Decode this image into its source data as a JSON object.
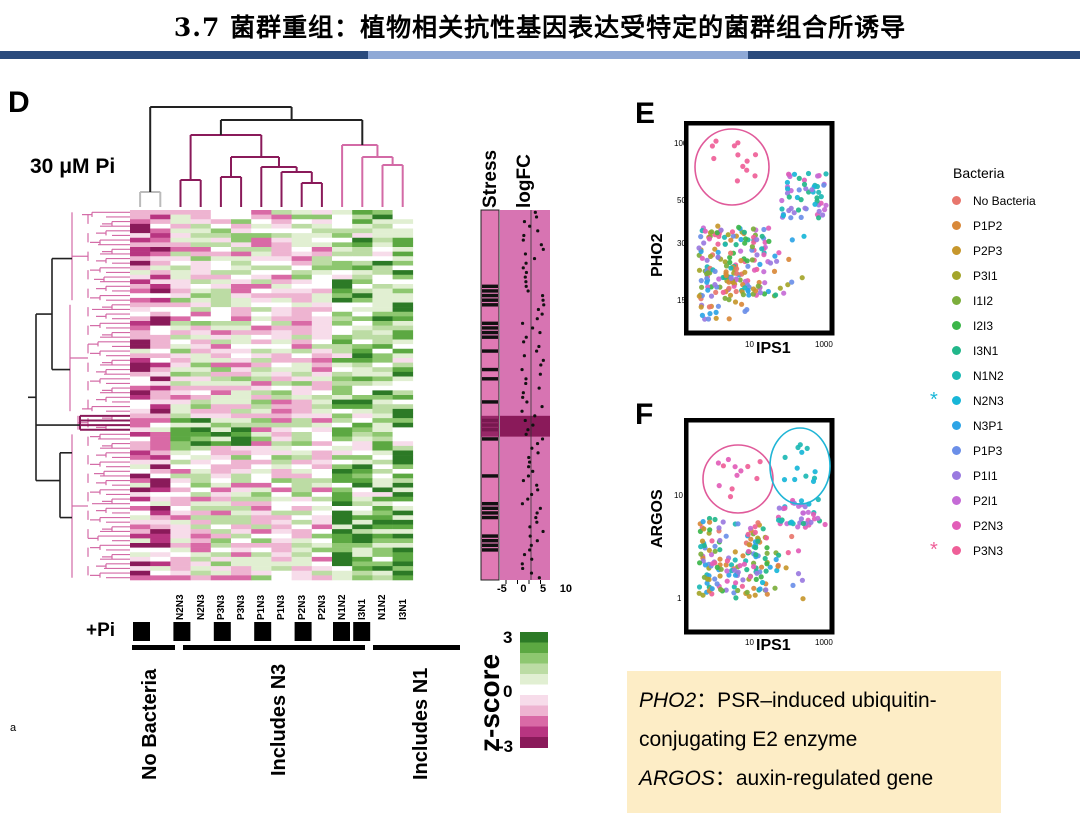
{
  "title": "3.7 菌群重组：植物相关抗性基因表达受特定的菌群组合所诱导",
  "panel_d": {
    "letter": "D",
    "condition": "30 μM Pi",
    "col_headers": [
      "Stress",
      "logFC"
    ],
    "logfc_ticks": [
      "-5",
      "0",
      "5",
      "10"
    ],
    "sample_labels": [
      "N2N3",
      "N2N3",
      "P3N3",
      "P3N3",
      "P1N3",
      "P1N3",
      "P2N3",
      "P2N3",
      "N1N2",
      "I3N1",
      "N1N2",
      "I3N1"
    ],
    "pi_label": "+Pi",
    "group_labels": [
      "No Bacteria",
      "Includes N3",
      "Includes N1"
    ],
    "zscore_title": "z-score",
    "zscore_ticks": [
      "3",
      "0",
      "-3"
    ],
    "colors": {
      "pink": "#c9488f",
      "green": "#3a8a2e",
      "magenta": "#8a1a5a"
    }
  },
  "panel_e": {
    "letter": "E",
    "ylabel": "PHO2",
    "xlabel": "IPS1",
    "yticks": [
      "100",
      "50",
      "30",
      "15"
    ],
    "xticks": [
      "10",
      "1000"
    ]
  },
  "panel_f": {
    "letter": "F",
    "ylabel": "ARGOS",
    "xlabel": "IPS1",
    "yticks": [
      "10",
      "1"
    ],
    "xticks": [
      "10",
      "1000"
    ]
  },
  "legend": {
    "title": "Bacteria",
    "items": [
      {
        "label": "No Bacteria",
        "color": "#e8766d",
        "marker": ""
      },
      {
        "label": "P1P2",
        "color": "#d9893a",
        "marker": ""
      },
      {
        "label": "P2P3",
        "color": "#c7972c",
        "marker": ""
      },
      {
        "label": "P3I1",
        "color": "#a4a52a",
        "marker": ""
      },
      {
        "label": "I1I2",
        "color": "#7cae3c",
        "marker": ""
      },
      {
        "label": "I2I3",
        "color": "#3cb64a",
        "marker": ""
      },
      {
        "label": "I3N1",
        "color": "#22b78a",
        "marker": ""
      },
      {
        "label": "N1N2",
        "color": "#1db9b4",
        "marker": ""
      },
      {
        "label": "N2N3",
        "color": "#18b6d8",
        "marker": "*"
      },
      {
        "label": "N3P1",
        "color": "#2ea4e6",
        "marker": ""
      },
      {
        "label": "P1P3",
        "color": "#6b8fe8",
        "marker": ""
      },
      {
        "label": "P1I1",
        "color": "#9a7ae0",
        "marker": ""
      },
      {
        "label": "P2I1",
        "color": "#c56bd6",
        "marker": ""
      },
      {
        "label": "P2N3",
        "color": "#e25db8",
        "marker": ""
      },
      {
        "label": "P3N3",
        "color": "#ef5f98",
        "marker": "*"
      }
    ]
  },
  "note": {
    "line1_gene": "PHO2",
    "line1_text": "：PSR–induced ubiquitin-",
    "line2_text": "conjugating E2 enzyme",
    "line3_gene": "ARGOS",
    "line3_text": "：auxin-regulated gene"
  },
  "margin_glyph": "a"
}
